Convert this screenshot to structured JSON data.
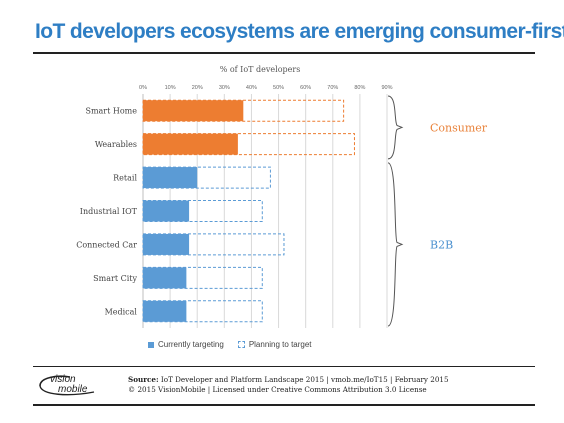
{
  "title": "IoT developers ecosystems are emerging consumer-first",
  "chart_data": {
    "type": "bar",
    "orientation": "horizontal",
    "xlabel": "% of IoT developers",
    "xlim": [
      0,
      90
    ],
    "ticks": [
      "0%",
      "10%",
      "20%",
      "30%",
      "40%",
      "50%",
      "60%",
      "70%",
      "80%",
      "90%"
    ],
    "grid": true,
    "categories": [
      "Smart Home",
      "Wearables",
      "Retail",
      "Industrial IOT",
      "Connected Car",
      "Smart City",
      "Medical"
    ],
    "series": [
      {
        "name": "Currently targeting",
        "values": [
          37,
          35,
          20,
          17,
          17,
          16,
          16
        ]
      },
      {
        "name": "Planning to target",
        "values": [
          74,
          78,
          47,
          44,
          52,
          44,
          44
        ]
      }
    ],
    "groups": [
      {
        "label": "Consumer",
        "categories": [
          "Smart Home",
          "Wearables"
        ],
        "color": "#e9823a"
      },
      {
        "label": "B2B",
        "categories": [
          "Retail",
          "Industrial IOT",
          "Connected Car",
          "Smart City",
          "Medical"
        ],
        "color": "#4a90cf"
      }
    ],
    "colors": {
      "consumer": "#ed7d31",
      "b2b": "#5b9bd5"
    },
    "legend": "bottom-left"
  },
  "legend": {
    "current": "Currently targeting",
    "planning": "Planning to target"
  },
  "footer": {
    "logo_top": "vision",
    "logo_bottom": "mobile",
    "source_label": "Source:",
    "source_text": "IoT Developer and Platform Landscape 2015 | vmob.me/IoT15 | February 2015",
    "license": "© 2015 VisionMobile | Licensed under Creative Commons Attribution 3.0 License"
  }
}
